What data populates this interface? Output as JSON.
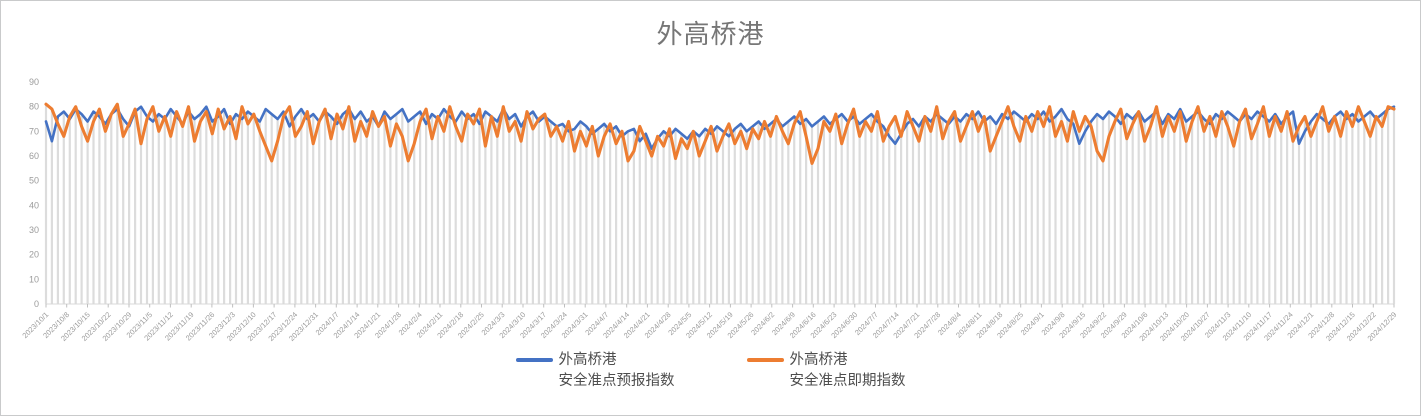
{
  "title": "外高桥港",
  "colors": {
    "forecast_blue": "#4472C4",
    "spot_orange": "#ED7D31",
    "drop_line": "#dcdcdc",
    "axis_line": "#d9d9d9",
    "tick_mark": "#bfbfbf",
    "axis_text": "#9b9b9b",
    "title_text": "#767676",
    "legend_text": "#4d4d4d",
    "frame_border": "#c9cacb"
  },
  "chart_data": {
    "type": "line",
    "title": "外高桥港",
    "xlabel": "",
    "ylabel": "",
    "ylim": [
      0,
      90
    ],
    "y_ticks": [
      0,
      10,
      20,
      30,
      40,
      50,
      60,
      70,
      80,
      90
    ],
    "grid": "vertical drop lines under each data point, no horizontal gridlines",
    "legend_position": "bottom-center",
    "x_tick_labels": [
      "2023/10/1",
      "2023/10/8",
      "2023/10/15",
      "2023/10/22",
      "2023/10/29",
      "2023/11/5",
      "2023/11/12",
      "2023/11/19",
      "2023/11/26",
      "2023/12/3",
      "2023/12/10",
      "2023/12/17",
      "2023/12/24",
      "2023/12/31",
      "2024/1/7",
      "2024/1/14",
      "2024/1/21",
      "2024/1/28",
      "2024/2/4",
      "2024/2/11",
      "2024/2/18",
      "2024/2/25",
      "2024/3/3",
      "2024/3/10",
      "2024/3/17",
      "2024/3/24",
      "2024/3/31",
      "2024/4/7",
      "2024/4/14",
      "2024/4/21",
      "2024/4/28",
      "2024/5/5",
      "2024/5/12",
      "2024/5/19",
      "2024/5/26",
      "2024/6/2",
      "2024/6/9",
      "2024/6/16",
      "2024/6/23",
      "2024/6/30",
      "2024/7/7",
      "2024/7/14",
      "2024/7/21",
      "2024/7/28",
      "2024/8/4",
      "2024/8/11",
      "2024/8/18",
      "2024/8/25",
      "2024/9/1",
      "2024/9/8",
      "2024/9/15",
      "2024/9/22",
      "2024/9/29",
      "2024/10/6",
      "2024/10/13",
      "2024/10/20",
      "2024/10/27",
      "2024/11/3",
      "2024/11/10",
      "2024/11/17",
      "2024/11/24",
      "2024/12/1",
      "2024/12/8",
      "2024/12/15",
      "2024/12/22",
      "2024/12/29"
    ],
    "series": [
      {
        "name": "外高桥港 安全准点预报指数",
        "legend_lines": [
          "外高桥港",
          "安全准点预报指数"
        ],
        "color": "#4472C4",
        "values": [
          74,
          66,
          76,
          78,
          75,
          79,
          77,
          74,
          78,
          76,
          73,
          77,
          79,
          75,
          72,
          78,
          80,
          76,
          74,
          77,
          75,
          79,
          76,
          73,
          78,
          75,
          77,
          80,
          74,
          76,
          79,
          73,
          77,
          75,
          78,
          76,
          74,
          79,
          77,
          75,
          78,
          72,
          76,
          79,
          75,
          77,
          74,
          78,
          76,
          73,
          77,
          79,
          75,
          78,
          74,
          76,
          72,
          78,
          75,
          77,
          79,
          74,
          76,
          78,
          73,
          77,
          75,
          79,
          76,
          74,
          78,
          75,
          77,
          73,
          78,
          76,
          74,
          79,
          75,
          77,
          72,
          76,
          78,
          74,
          76,
          74,
          72,
          73,
          70,
          71,
          74,
          72,
          69,
          71,
          73,
          70,
          72,
          68,
          70,
          71,
          66,
          69,
          63,
          67,
          70,
          68,
          71,
          69,
          67,
          70,
          68,
          71,
          69,
          72,
          70,
          68,
          71,
          73,
          70,
          72,
          74,
          71,
          73,
          75,
          72,
          74,
          76,
          73,
          75,
          72,
          74,
          76,
          73,
          75,
          77,
          74,
          76,
          73,
          75,
          77,
          74,
          72,
          68,
          65,
          69,
          73,
          75,
          72,
          76,
          74,
          77,
          75,
          73,
          76,
          74,
          77,
          75,
          78,
          74,
          76,
          73,
          77,
          75,
          78,
          76,
          74,
          77,
          75,
          78,
          74,
          76,
          79,
          75,
          73,
          65,
          70,
          74,
          77,
          75,
          78,
          76,
          73,
          77,
          75,
          78,
          74,
          76,
          78,
          73,
          77,
          75,
          79,
          74,
          76,
          78,
          75,
          73,
          77,
          75,
          78,
          76,
          74,
          77,
          75,
          78,
          76,
          74,
          77,
          73,
          76,
          78,
          65,
          70,
          74,
          77,
          75,
          73,
          76,
          78,
          75,
          77,
          74,
          76,
          78,
          75,
          77,
          79,
          80
        ]
      },
      {
        "name": "外高桥港 安全准点即期指数",
        "legend_lines": [
          "外高桥港",
          "安全准点即期指数"
        ],
        "color": "#ED7D31",
        "values": [
          81,
          79,
          73,
          68,
          76,
          80,
          72,
          66,
          74,
          79,
          70,
          77,
          81,
          68,
          73,
          79,
          65,
          75,
          80,
          70,
          76,
          68,
          78,
          72,
          80,
          66,
          74,
          78,
          69,
          79,
          71,
          76,
          67,
          80,
          73,
          77,
          70,
          64,
          58,
          66,
          76,
          80,
          68,
          72,
          78,
          65,
          74,
          79,
          67,
          77,
          71,
          80,
          66,
          74,
          68,
          78,
          72,
          76,
          64,
          73,
          68,
          58,
          65,
          74,
          79,
          67,
          76,
          70,
          80,
          72,
          66,
          77,
          73,
          79,
          64,
          76,
          68,
          80,
          70,
          74,
          66,
          78,
          71,
          75,
          77,
          68,
          72,
          66,
          74,
          62,
          70,
          64,
          72,
          60,
          68,
          73,
          65,
          70,
          58,
          62,
          72,
          66,
          60,
          68,
          64,
          71,
          59,
          67,
          63,
          70,
          60,
          66,
          72,
          62,
          68,
          73,
          65,
          70,
          63,
          71,
          67,
          74,
          68,
          76,
          70,
          65,
          73,
          78,
          68,
          57,
          63,
          74,
          70,
          77,
          65,
          73,
          79,
          68,
          74,
          70,
          78,
          66,
          72,
          76,
          68,
          78,
          72,
          66,
          76,
          70,
          80,
          67,
          74,
          78,
          66,
          72,
          78,
          70,
          76,
          62,
          68,
          74,
          80,
          72,
          66,
          76,
          70,
          78,
          72,
          80,
          68,
          74,
          66,
          78,
          70,
          76,
          72,
          62,
          58,
          68,
          74,
          79,
          67,
          73,
          78,
          66,
          72,
          80,
          68,
          76,
          70,
          78,
          66,
          74,
          80,
          70,
          76,
          68,
          78,
          72,
          64,
          74,
          79,
          67,
          73,
          80,
          68,
          76,
          70,
          78,
          66,
          72,
          76,
          68,
          74,
          80,
          70,
          76,
          68,
          78,
          72,
          80,
          74,
          68,
          76,
          72,
          80,
          79
        ]
      }
    ]
  }
}
